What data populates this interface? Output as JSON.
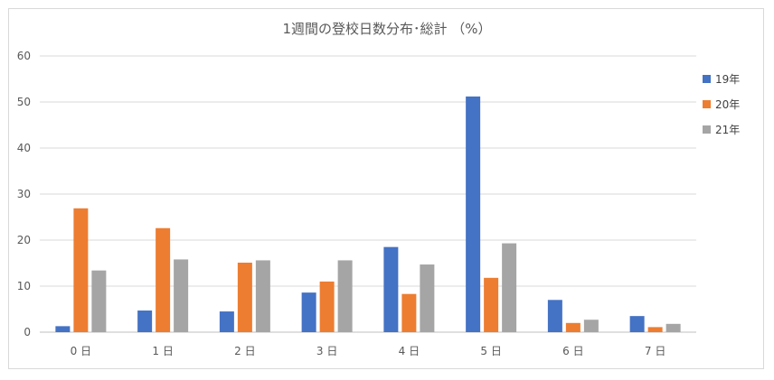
{
  "chart_data": {
    "type": "bar",
    "title": "1週間の登校日数分布･総計 （%）",
    "categories": [
      "0 日",
      "1 日",
      "2 日",
      "3 日",
      "4 日",
      "5 日",
      "6 日",
      "7 日"
    ],
    "series": [
      {
        "name": "19年",
        "color": "#4472c4",
        "values": [
          1.3,
          4.7,
          4.5,
          8.6,
          18.5,
          51.2,
          7.0,
          3.5
        ]
      },
      {
        "name": "20年",
        "color": "#ed7d31",
        "values": [
          26.9,
          22.6,
          15.1,
          11.0,
          8.3,
          11.8,
          2.0,
          1.1
        ]
      },
      {
        "name": "21年",
        "color": "#a5a5a5",
        "values": [
          13.4,
          15.8,
          15.6,
          15.6,
          14.7,
          19.3,
          2.7,
          1.8
        ]
      }
    ],
    "ylim": [
      0,
      60
    ],
    "yticks": [
      0,
      10,
      20,
      30,
      40,
      50,
      60
    ],
    "grid": true,
    "legend_position": "right"
  }
}
